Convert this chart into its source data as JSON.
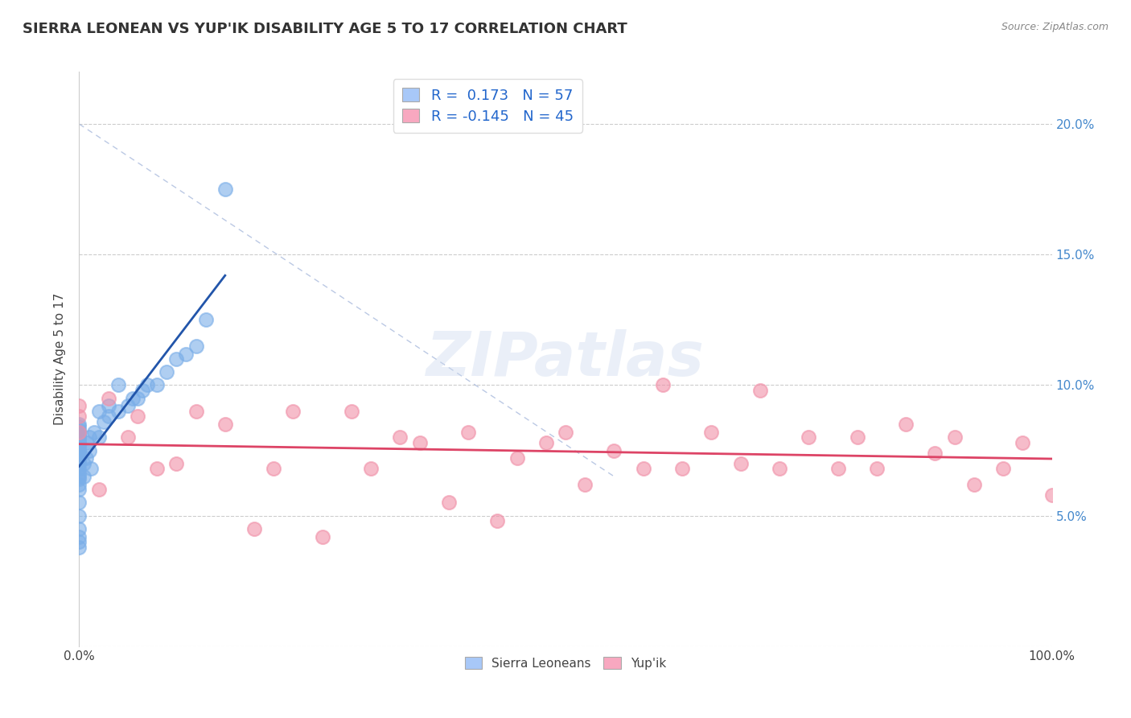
{
  "title": "SIERRA LEONEAN VS YUP'IK DISABILITY AGE 5 TO 17 CORRELATION CHART",
  "source_text": "Source: ZipAtlas.com",
  "ylabel": "Disability Age 5 to 17",
  "watermark": "ZIPatlas",
  "sierra_color": "#7aaee8",
  "yupik_color": "#f090a8",
  "sierra_line_color": "#2255aa",
  "yupik_line_color": "#dd4466",
  "background_color": "#ffffff",
  "grid_color": "#cccccc",
  "right_tick_color": "#4488cc",
  "xlim": [
    0.0,
    1.0
  ],
  "ylim": [
    0.0,
    0.22
  ],
  "x_ticks": [
    0.0,
    1.0
  ],
  "x_tick_labels": [
    "0.0%",
    "100.0%"
  ],
  "y_ticks": [
    0.0,
    0.05,
    0.1,
    0.15,
    0.2
  ],
  "y_tick_labels_right": [
    "",
    "5.0%",
    "10.0%",
    "15.0%",
    "20.0%"
  ],
  "legend_r1": "R = ",
  "legend_v1": " 0.173",
  "legend_n1": "   N = ",
  "legend_nv1": "57",
  "legend_r2": "R = ",
  "legend_v2": "-0.145",
  "legend_n2": "   N = ",
  "legend_nv2": "45",
  "sierra_color_legend": "#a8c8f8",
  "yupik_color_legend": "#f8a8c0",
  "sierra_x": [
    0.0,
    0.0,
    0.0,
    0.0,
    0.0,
    0.0,
    0.0,
    0.0,
    0.0,
    0.0,
    0.0,
    0.0,
    0.0,
    0.0,
    0.0,
    0.0,
    0.0,
    0.0,
    0.0,
    0.0,
    0.0,
    0.0,
    0.0,
    0.0,
    0.0,
    0.0,
    0.0,
    0.0,
    0.0,
    0.0,
    0.005,
    0.005,
    0.007,
    0.008,
    0.01,
    0.01,
    0.012,
    0.015,
    0.02,
    0.02,
    0.025,
    0.03,
    0.03,
    0.04,
    0.04,
    0.05,
    0.055,
    0.06,
    0.065,
    0.07,
    0.08,
    0.09,
    0.1,
    0.11,
    0.12,
    0.13,
    0.15
  ],
  "sierra_y": [
    0.06,
    0.062,
    0.064,
    0.065,
    0.066,
    0.068,
    0.07,
    0.071,
    0.072,
    0.073,
    0.074,
    0.075,
    0.075,
    0.076,
    0.077,
    0.078,
    0.079,
    0.08,
    0.08,
    0.081,
    0.082,
    0.083,
    0.084,
    0.085,
    0.04,
    0.038,
    0.042,
    0.045,
    0.05,
    0.055,
    0.065,
    0.07,
    0.072,
    0.078,
    0.075,
    0.08,
    0.068,
    0.082,
    0.08,
    0.09,
    0.086,
    0.088,
    0.092,
    0.09,
    0.1,
    0.092,
    0.095,
    0.095,
    0.098,
    0.1,
    0.1,
    0.105,
    0.11,
    0.112,
    0.115,
    0.125,
    0.175
  ],
  "yupik_x": [
    0.0,
    0.0,
    0.0,
    0.02,
    0.03,
    0.05,
    0.06,
    0.08,
    0.1,
    0.12,
    0.15,
    0.18,
    0.2,
    0.22,
    0.25,
    0.28,
    0.3,
    0.33,
    0.35,
    0.38,
    0.4,
    0.43,
    0.45,
    0.48,
    0.5,
    0.52,
    0.55,
    0.58,
    0.6,
    0.62,
    0.65,
    0.68,
    0.7,
    0.72,
    0.75,
    0.78,
    0.8,
    0.82,
    0.85,
    0.88,
    0.9,
    0.92,
    0.95,
    0.97,
    1.0
  ],
  "yupik_y": [
    0.082,
    0.088,
    0.092,
    0.06,
    0.095,
    0.08,
    0.088,
    0.068,
    0.07,
    0.09,
    0.085,
    0.045,
    0.068,
    0.09,
    0.042,
    0.09,
    0.068,
    0.08,
    0.078,
    0.055,
    0.082,
    0.048,
    0.072,
    0.078,
    0.082,
    0.062,
    0.075,
    0.068,
    0.1,
    0.068,
    0.082,
    0.07,
    0.098,
    0.068,
    0.08,
    0.068,
    0.08,
    0.068,
    0.085,
    0.074,
    0.08,
    0.062,
    0.068,
    0.078,
    0.058
  ],
  "diag_line_color": "#aabbdd",
  "diag_line_x": [
    0.0,
    0.55
  ],
  "diag_line_y": [
    0.2,
    0.065
  ]
}
